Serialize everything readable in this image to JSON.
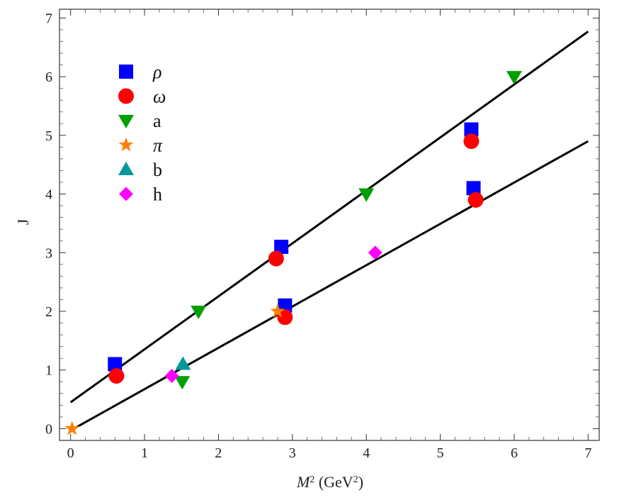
{
  "chart_data": {
    "type": "scatter",
    "xlabel": {
      "base": "M",
      "sup": "2",
      "units_pre": " (GeV",
      "units_sup": "2",
      "units_post": ")"
    },
    "ylabel": "J",
    "xlim": [
      -0.15,
      7.15
    ],
    "ylim": [
      -0.2,
      7.15
    ],
    "xticks": [
      0,
      1,
      2,
      3,
      4,
      5,
      6,
      7
    ],
    "yticks": [
      0,
      1,
      2,
      3,
      4,
      5,
      6,
      7
    ],
    "grid": false,
    "legend_position": "top-left",
    "series": [
      {
        "name": "ρ",
        "marker": "square",
        "color": "#0000ff",
        "points": [
          [
            0.6,
            1.1
          ],
          [
            2.85,
            3.1
          ],
          [
            2.9,
            2.1
          ],
          [
            5.42,
            5.1
          ],
          [
            5.45,
            4.1
          ]
        ]
      },
      {
        "name": "ω",
        "marker": "circle",
        "color": "#ff0000",
        "points": [
          [
            0.62,
            0.9
          ],
          [
            2.78,
            2.9
          ],
          [
            2.9,
            1.9
          ],
          [
            5.42,
            4.9
          ],
          [
            5.48,
            3.9
          ]
        ]
      },
      {
        "name": "a",
        "marker": "triangle-down",
        "color": "#00a000",
        "points": [
          [
            1.73,
            2.0
          ],
          [
            1.51,
            0.8
          ],
          [
            4.0,
            4.0
          ],
          [
            6.0,
            6.0
          ]
        ]
      },
      {
        "name": "π",
        "marker": "star",
        "color": "#ff8000",
        "points": [
          [
            0.02,
            0.0
          ],
          [
            2.8,
            2.0
          ]
        ]
      },
      {
        "name": "b",
        "marker": "triangle-up",
        "color": "#009999",
        "points": [
          [
            1.52,
            1.1
          ]
        ]
      },
      {
        "name": "h",
        "marker": "diamond",
        "color": "#ff00ff",
        "points": [
          [
            1.37,
            0.9
          ],
          [
            4.12,
            3.0
          ]
        ]
      }
    ],
    "fit_lines": [
      {
        "from": [
          0.0,
          0.45
        ],
        "to": [
          7.0,
          6.77
        ],
        "color": "#000000"
      },
      {
        "from": [
          0.0,
          -0.03
        ],
        "to": [
          7.0,
          4.9
        ],
        "color": "#000000"
      }
    ]
  }
}
